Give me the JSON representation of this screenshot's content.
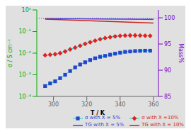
{
  "chart_data": {
    "type": "line",
    "xlabel": "T / K",
    "ylabel": "σ / S cm⁻¹",
    "y2label": "Mass%",
    "log": "y",
    "xlim": [
      290,
      363
    ],
    "xticks": [
      300,
      320,
      340,
      360
    ],
    "ylim": [
      0.0001,
      1
    ],
    "yticks": [
      {
        "value": 0.0001,
        "label": "10⁻⁴"
      },
      {
        "value": 0.001,
        "label": "10⁻³"
      },
      {
        "value": 0.01,
        "label": "10⁻²"
      },
      {
        "value": 0.1,
        "label": "10⁻¹"
      },
      {
        "value": 1,
        "label": "10⁰"
      }
    ],
    "y2lim": [
      85,
      101.5
    ],
    "y2ticks": [
      85,
      90,
      95,
      100
    ],
    "legend": "lower right",
    "background": "#e0e0e0",
    "y_color": "#00aa00",
    "y2_color": "#7700cc",
    "reference_lines": [
      {
        "y": 99.9,
        "axis": "y2",
        "color": "#9933aa",
        "line_style": "dotted"
      }
    ],
    "series": [
      {
        "name": "σ with X = 5%",
        "x": [
          295,
          298,
          301,
          304,
          307,
          310,
          313,
          316,
          319,
          322,
          325,
          328,
          331,
          334,
          337,
          340,
          343,
          346,
          349,
          352,
          355,
          358
        ],
        "values": [
          0.0003,
          0.0004,
          0.0005,
          0.0007,
          0.001,
          0.0015,
          0.0022,
          0.003,
          0.0038,
          0.0048,
          0.0058,
          0.0068,
          0.0075,
          0.0085,
          0.0095,
          0.0105,
          0.0115,
          0.012,
          0.0125,
          0.0128,
          0.013,
          0.013
        ],
        "color": "#2244cc",
        "line_color": "#00ddcc",
        "marker": "square"
      },
      {
        "name": "σ with X =10%",
        "x": [
          295,
          298,
          301,
          304,
          307,
          310,
          313,
          316,
          319,
          322,
          325,
          328,
          331,
          334,
          337,
          340,
          343,
          346,
          349,
          352,
          355,
          358
        ],
        "values": [
          0.008,
          0.0085,
          0.009,
          0.01,
          0.012,
          0.015,
          0.018,
          0.022,
          0.027,
          0.032,
          0.038,
          0.044,
          0.05,
          0.055,
          0.06,
          0.063,
          0.065,
          0.066,
          0.066,
          0.065,
          0.064,
          0.063
        ],
        "color": "#dd2222",
        "line_color": "#00ddcc",
        "marker": "diamond"
      },
      {
        "name": "TG with X = 5%",
        "x": [
          295,
          360
        ],
        "values": [
          99.85,
          99.7
        ],
        "color": "#4444dd",
        "axis": "y2"
      },
      {
        "name": "TG with X = 10%",
        "x": [
          295,
          360
        ],
        "values": [
          99.75,
          99.0
        ],
        "color": "#cc2222",
        "axis": "y2"
      }
    ]
  }
}
